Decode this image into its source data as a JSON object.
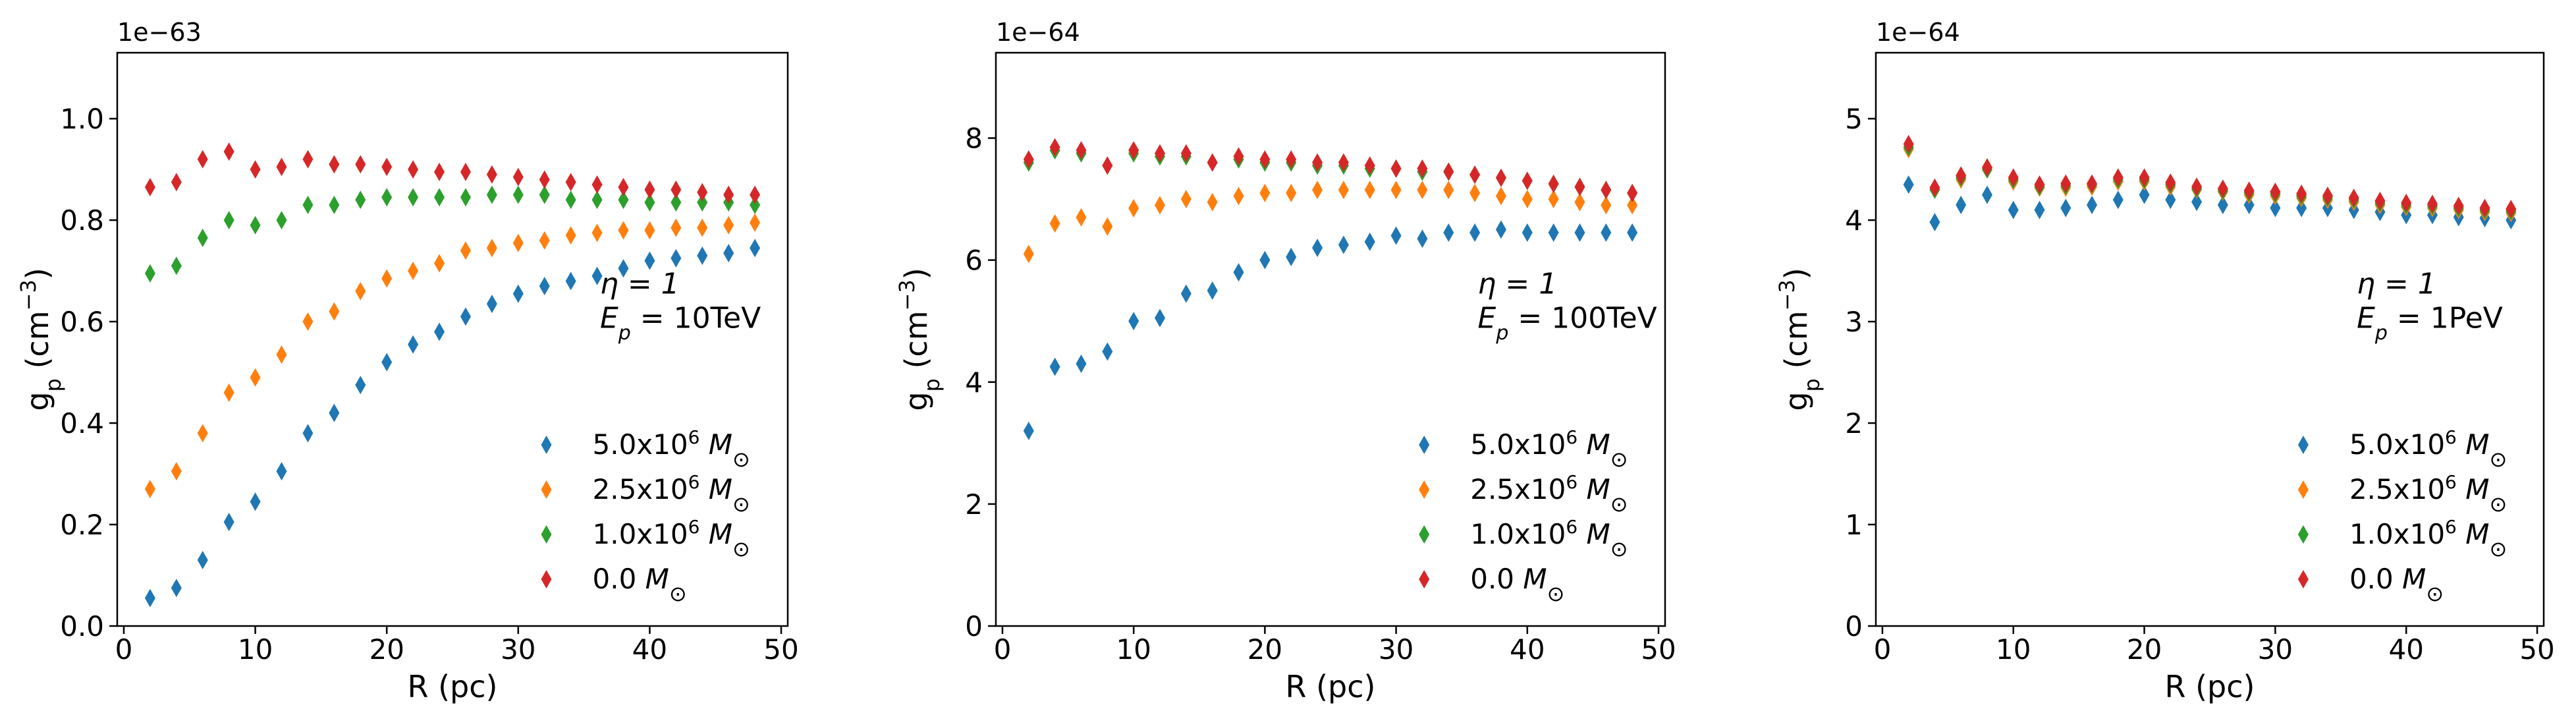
{
  "colors": {
    "series_1": "#1f77b4",
    "series_2": "#ff7f0e",
    "series_3": "#2ca02c",
    "series_4": "#d62728",
    "axes": "#000000"
  },
  "chart_data": [
    {
      "type": "scatter",
      "marker": "diamond",
      "xlabel": "R (pc)",
      "ylabel": "g_p (cm^-3)",
      "ylabel_main": "g",
      "ylabel_sub": "p",
      "ylabel_open": " (cm",
      "ylabel_sup": "−3",
      "ylabel_close": ")",
      "offset_text": "1e−63",
      "xlim": [
        -0.5,
        50.5
      ],
      "ylim": [
        0.0,
        1.13
      ],
      "xticks": [
        0,
        10,
        20,
        30,
        40,
        50
      ],
      "yticks": [
        0.0,
        0.2,
        0.4,
        0.6,
        0.8,
        1.0
      ],
      "ytick_labels": [
        "0.0",
        "0.2",
        "0.4",
        "0.6",
        "0.8",
        "1.0"
      ],
      "annotation": {
        "eta": "η = 1",
        "ep_prefix": "E",
        "ep_sub": "p",
        "ep_value": " = 10TeV"
      },
      "legend_location": "lower-right",
      "x": [
        2,
        4,
        6,
        8,
        10,
        12,
        14,
        16,
        18,
        20,
        22,
        24,
        26,
        28,
        30,
        32,
        34,
        36,
        38,
        40,
        42,
        44,
        46,
        48
      ],
      "series": [
        {
          "name": "5.0x10^6 M_sun",
          "mass": "5.0x10",
          "exp": "6",
          "unit": "M",
          "sub": "⊙",
          "values": [
            0.055,
            0.075,
            0.13,
            0.205,
            0.245,
            0.305,
            0.38,
            0.42,
            0.475,
            0.52,
            0.555,
            0.58,
            0.61,
            0.635,
            0.655,
            0.67,
            0.68,
            0.69,
            0.705,
            0.72,
            0.725,
            0.73,
            0.735,
            0.745
          ]
        },
        {
          "name": "2.5x10^6 M_sun",
          "mass": "2.5x10",
          "exp": "6",
          "unit": "M",
          "sub": "⊙",
          "values": [
            0.27,
            0.305,
            0.38,
            0.46,
            0.49,
            0.535,
            0.6,
            0.62,
            0.66,
            0.685,
            0.7,
            0.715,
            0.74,
            0.745,
            0.755,
            0.76,
            0.77,
            0.775,
            0.78,
            0.78,
            0.785,
            0.785,
            0.79,
            0.795
          ]
        },
        {
          "name": "1.0x10^6 M_sun",
          "mass": "1.0x10",
          "exp": "6",
          "unit": "M",
          "sub": "⊙",
          "values": [
            0.695,
            0.71,
            0.765,
            0.8,
            0.79,
            0.8,
            0.83,
            0.83,
            0.84,
            0.845,
            0.845,
            0.845,
            0.845,
            0.85,
            0.85,
            0.85,
            0.84,
            0.84,
            0.84,
            0.835,
            0.835,
            0.835,
            0.835,
            0.83
          ]
        },
        {
          "name": "0.0 M_sun",
          "mass": "0.0",
          "exp": "",
          "unit": "M",
          "sub": "⊙",
          "values": [
            0.865,
            0.875,
            0.92,
            0.935,
            0.9,
            0.905,
            0.92,
            0.91,
            0.91,
            0.905,
            0.9,
            0.895,
            0.895,
            0.89,
            0.885,
            0.88,
            0.875,
            0.87,
            0.865,
            0.86,
            0.86,
            0.855,
            0.85,
            0.85
          ]
        }
      ]
    },
    {
      "type": "scatter",
      "marker": "diamond",
      "xlabel": "R (pc)",
      "ylabel": "g_p (cm^-3)",
      "ylabel_main": "g",
      "ylabel_sub": "p",
      "ylabel_open": " (cm",
      "ylabel_sup": "−3",
      "ylabel_close": ")",
      "offset_text": "1e−64",
      "xlim": [
        -0.5,
        50.5
      ],
      "ylim": [
        0.0,
        9.4
      ],
      "xticks": [
        0,
        10,
        20,
        30,
        40,
        50
      ],
      "yticks": [
        0,
        2,
        4,
        6,
        8
      ],
      "ytick_labels": [
        "0",
        "2",
        "4",
        "6",
        "8"
      ],
      "annotation": {
        "eta": "η = 1",
        "ep_prefix": "E",
        "ep_sub": "p",
        "ep_value": " = 100TeV"
      },
      "legend_location": "lower-right",
      "x": [
        2,
        4,
        6,
        8,
        10,
        12,
        14,
        16,
        18,
        20,
        22,
        24,
        26,
        28,
        30,
        32,
        34,
        36,
        38,
        40,
        42,
        44,
        46,
        48
      ],
      "series": [
        {
          "name": "5.0x10^6 M_sun",
          "mass": "5.0x10",
          "exp": "6",
          "unit": "M",
          "sub": "⊙",
          "values": [
            3.2,
            4.25,
            4.3,
            4.5,
            5.0,
            5.05,
            5.45,
            5.5,
            5.8,
            6.0,
            6.05,
            6.2,
            6.25,
            6.3,
            6.4,
            6.35,
            6.45,
            6.45,
            6.5,
            6.45,
            6.45,
            6.45,
            6.45,
            6.45
          ]
        },
        {
          "name": "2.5x10^6 M_sun",
          "mass": "2.5x10",
          "exp": "6",
          "unit": "M",
          "sub": "⊙",
          "values": [
            6.1,
            6.6,
            6.7,
            6.55,
            6.85,
            6.9,
            7.0,
            6.95,
            7.05,
            7.1,
            7.1,
            7.15,
            7.15,
            7.15,
            7.15,
            7.15,
            7.15,
            7.1,
            7.05,
            7.0,
            7.0,
            6.95,
            6.9,
            6.9
          ]
        },
        {
          "name": "1.0x10^6 M_sun",
          "mass": "1.0x10",
          "exp": "6",
          "unit": "M",
          "sub": "⊙",
          "values": [
            7.6,
            7.8,
            7.75,
            7.55,
            7.75,
            7.7,
            7.7,
            7.6,
            7.65,
            7.6,
            7.6,
            7.55,
            7.55,
            7.5,
            7.5,
            7.45,
            7.45,
            7.4,
            7.35,
            7.3,
            7.25,
            7.2,
            7.15,
            7.1
          ]
        },
        {
          "name": "0.0 M_sun",
          "mass": "0.0",
          "exp": "",
          "unit": "M",
          "sub": "⊙",
          "values": [
            7.65,
            7.85,
            7.8,
            7.55,
            7.8,
            7.75,
            7.75,
            7.6,
            7.7,
            7.65,
            7.65,
            7.6,
            7.6,
            7.55,
            7.5,
            7.5,
            7.45,
            7.4,
            7.35,
            7.3,
            7.25,
            7.2,
            7.15,
            7.1
          ]
        }
      ]
    },
    {
      "type": "scatter",
      "marker": "diamond",
      "xlabel": "R (pc)",
      "ylabel": "g_p (cm^-3)",
      "ylabel_main": "g",
      "ylabel_sub": "p",
      "ylabel_open": " (cm",
      "ylabel_sup": "−3",
      "ylabel_close": ")",
      "offset_text": "1e−64",
      "xlim": [
        -0.5,
        50.5
      ],
      "ylim": [
        0.0,
        5.65
      ],
      "xticks": [
        0,
        10,
        20,
        30,
        40,
        50
      ],
      "yticks": [
        0,
        1,
        2,
        3,
        4,
        5
      ],
      "ytick_labels": [
        "0",
        "1",
        "2",
        "3",
        "4",
        "5"
      ],
      "annotation": {
        "eta": "η = 1",
        "ep_prefix": "E",
        "ep_sub": "p",
        "ep_value": " = 1PeV"
      },
      "legend_location": "lower-right",
      "x": [
        2,
        4,
        6,
        8,
        10,
        12,
        14,
        16,
        18,
        20,
        22,
        24,
        26,
        28,
        30,
        32,
        34,
        36,
        38,
        40,
        42,
        44,
        46,
        48
      ],
      "series": [
        {
          "name": "5.0x10^6 M_sun",
          "mass": "5.0x10",
          "exp": "6",
          "unit": "M",
          "sub": "⊙",
          "values": [
            4.35,
            3.98,
            4.15,
            4.25,
            4.1,
            4.1,
            4.12,
            4.15,
            4.2,
            4.25,
            4.2,
            4.18,
            4.15,
            4.15,
            4.12,
            4.12,
            4.12,
            4.1,
            4.08,
            4.05,
            4.05,
            4.03,
            4.02,
            4.0
          ]
        },
        {
          "name": "2.5x10^6 M_sun",
          "mass": "2.5x10",
          "exp": "6",
          "unit": "M",
          "sub": "⊙",
          "values": [
            4.7,
            4.3,
            4.4,
            4.5,
            4.38,
            4.32,
            4.32,
            4.33,
            4.38,
            4.38,
            4.33,
            4.3,
            4.28,
            4.25,
            4.24,
            4.22,
            4.2,
            4.18,
            4.15,
            4.13,
            4.12,
            4.1,
            4.08,
            4.07
          ]
        },
        {
          "name": "1.0x10^6 M_sun",
          "mass": "1.0x10",
          "exp": "6",
          "unit": "M",
          "sub": "⊙",
          "values": [
            4.72,
            4.3,
            4.42,
            4.5,
            4.4,
            4.33,
            4.34,
            4.35,
            4.4,
            4.4,
            4.35,
            4.31,
            4.29,
            4.27,
            4.26,
            4.24,
            4.22,
            4.2,
            4.17,
            4.15,
            4.14,
            4.12,
            4.1,
            4.09
          ]
        },
        {
          "name": "0.0 M_sun",
          "mass": "0.0",
          "exp": "",
          "unit": "M",
          "sub": "⊙",
          "values": [
            4.75,
            4.32,
            4.44,
            4.52,
            4.42,
            4.35,
            4.36,
            4.36,
            4.42,
            4.42,
            4.37,
            4.33,
            4.31,
            4.29,
            4.28,
            4.26,
            4.24,
            4.22,
            4.19,
            4.17,
            4.16,
            4.14,
            4.12,
            4.11
          ]
        }
      ]
    }
  ]
}
